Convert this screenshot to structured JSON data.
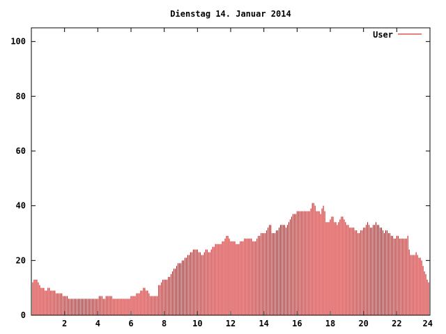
{
  "chart_data": {
    "type": "bar",
    "title": "Dienstag 14. Januar 2014",
    "xlabel": "",
    "ylabel": "",
    "xlim": [
      0,
      24
    ],
    "ylim": [
      0,
      105
    ],
    "x_ticks": [
      2,
      4,
      6,
      8,
      10,
      12,
      14,
      16,
      18,
      20,
      22,
      24
    ],
    "y_ticks": [
      0,
      20,
      40,
      60,
      80,
      100
    ],
    "grid": false,
    "legend_position": "top-right",
    "series": [
      {
        "name": "User",
        "color": "#cc0000",
        "x_start": 0,
        "x_step": 0.083333,
        "values": [
          12,
          12,
          13,
          13,
          13,
          12,
          11,
          10,
          10,
          10,
          9,
          9,
          10,
          10,
          9,
          9,
          9,
          9,
          8,
          8,
          8,
          8,
          8,
          7,
          7,
          7,
          7,
          6,
          6,
          6,
          6,
          6,
          6,
          6,
          6,
          6,
          6,
          6,
          6,
          6,
          6,
          6,
          6,
          6,
          6,
          6,
          6,
          6,
          6,
          7,
          7,
          7,
          6,
          6,
          7,
          7,
          7,
          7,
          7,
          6,
          6,
          6,
          6,
          6,
          6,
          6,
          6,
          6,
          6,
          6,
          6,
          6,
          7,
          7,
          7,
          7,
          8,
          8,
          8,
          9,
          9,
          10,
          10,
          9,
          9,
          8,
          7,
          7,
          7,
          7,
          7,
          7,
          11,
          11,
          12,
          13,
          13,
          13,
          13,
          14,
          14,
          15,
          16,
          17,
          17,
          18,
          19,
          19,
          19,
          20,
          20,
          21,
          21,
          22,
          22,
          23,
          23,
          24,
          24,
          24,
          24,
          23,
          23,
          22,
          22,
          23,
          24,
          24,
          23,
          23,
          24,
          25,
          25,
          26,
          26,
          26,
          26,
          26,
          27,
          27,
          28,
          29,
          29,
          28,
          27,
          27,
          27,
          27,
          26,
          26,
          26,
          27,
          27,
          27,
          28,
          28,
          28,
          28,
          28,
          28,
          27,
          27,
          27,
          28,
          29,
          29,
          30,
          30,
          30,
          30,
          31,
          32,
          33,
          33,
          30,
          30,
          30,
          31,
          31,
          32,
          33,
          33,
          33,
          33,
          32,
          33,
          34,
          35,
          36,
          37,
          37,
          37,
          38,
          38,
          38,
          38,
          38,
          38,
          38,
          38,
          38,
          38,
          39,
          41,
          41,
          40,
          38,
          38,
          38,
          37,
          39,
          40,
          38,
          34,
          34,
          34,
          35,
          36,
          36,
          34,
          34,
          33,
          34,
          35,
          36,
          36,
          35,
          34,
          33,
          33,
          32,
          32,
          32,
          32,
          31,
          31,
          30,
          30,
          31,
          31,
          32,
          32,
          33,
          34,
          33,
          32,
          32,
          33,
          33,
          34,
          33,
          33,
          32,
          32,
          31,
          30,
          31,
          31,
          30,
          30,
          29,
          29,
          28,
          28,
          29,
          29,
          28,
          28,
          28,
          28,
          28,
          28,
          29,
          24,
          22,
          22,
          22,
          22,
          23,
          22,
          21,
          21,
          20,
          18,
          16,
          15,
          13,
          12
        ]
      }
    ]
  }
}
